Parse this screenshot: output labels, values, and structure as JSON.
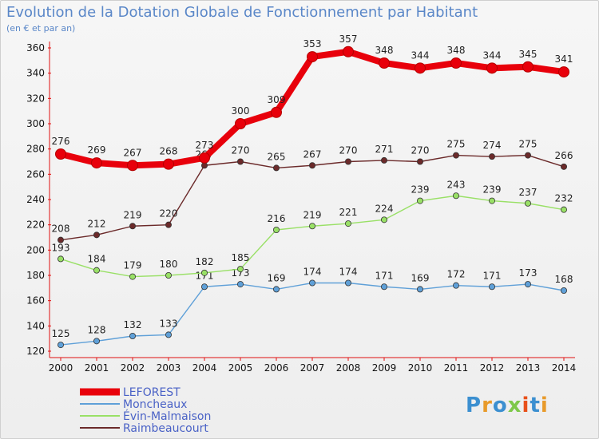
{
  "chart_data": {
    "type": "line",
    "title": "Evolution de la Dotation Globale de Fonctionnement par Habitant",
    "subtitle": "(en € et par an)",
    "x": [
      "2000",
      "2001",
      "2002",
      "2003",
      "2004",
      "2005",
      "2006",
      "2007",
      "2008",
      "2009",
      "2010",
      "2011",
      "2012",
      "2013",
      "2014"
    ],
    "ylim": [
      120,
      360
    ],
    "yticks": [
      120,
      140,
      160,
      180,
      200,
      220,
      240,
      260,
      280,
      300,
      320,
      340,
      360
    ],
    "grid": false,
    "legend_position": "bottom-left",
    "series": [
      {
        "name": "LEFOREST",
        "color": "#e8000b",
        "values": [
          276,
          269,
          267,
          268,
          273,
          300,
          309,
          353,
          357,
          348,
          344,
          348,
          344,
          345,
          341
        ]
      },
      {
        "name": "Moncheaux",
        "color": "#5fa0d8",
        "values": [
          125,
          128,
          132,
          133,
          171,
          173,
          169,
          174,
          174,
          171,
          169,
          172,
          171,
          173,
          168
        ]
      },
      {
        "name": "Évin-Malmaison",
        "color": "#99e066",
        "values": [
          193,
          184,
          179,
          180,
          182,
          185,
          216,
          219,
          221,
          224,
          239,
          243,
          239,
          237,
          232
        ]
      },
      {
        "name": "Raimbeaucourt",
        "color": "#6b2a2a",
        "values": [
          208,
          212,
          219,
          220,
          267,
          270,
          265,
          267,
          270,
          271,
          270,
          275,
          274,
          275,
          266
        ]
      }
    ]
  },
  "watermark": "Proxiti"
}
